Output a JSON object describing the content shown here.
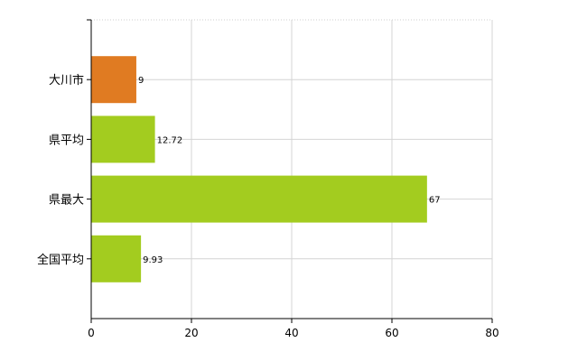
{
  "chart_data": {
    "type": "bar",
    "orientation": "horizontal",
    "categories": [
      "大川市",
      "県平均",
      "県最大",
      "全国平均"
    ],
    "values": [
      9,
      12.72,
      67,
      9.93
    ],
    "value_labels": [
      "9",
      "12.72",
      "67",
      "9.93"
    ],
    "bar_colors": [
      "#e07b22",
      "#a3cc1f",
      "#a3cc1f",
      "#a3cc1f"
    ],
    "xlim": [
      0,
      80
    ],
    "x_ticks": [
      "0",
      "20",
      "40",
      "60",
      "80"
    ],
    "grid": true,
    "legend": "none",
    "title": "",
    "xlabel": "",
    "ylabel": ""
  }
}
